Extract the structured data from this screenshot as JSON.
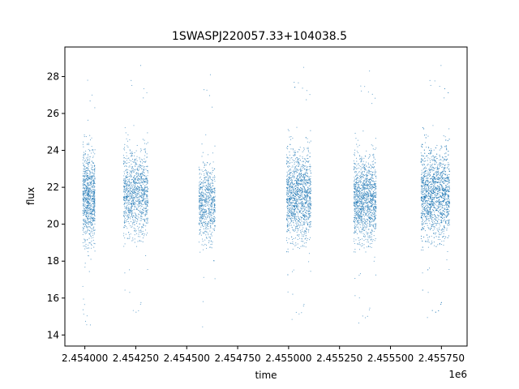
{
  "chart_data": {
    "type": "scatter",
    "title": "1SWASPJ220057.33+104038.5",
    "xlabel": "time",
    "ylabel": "flux",
    "x_offset_label": "1e6",
    "xlim": [
      2.453902,
      2.455876
    ],
    "ylim": [
      13.4,
      29.6
    ],
    "x_ticks": [
      2.454,
      2.45425,
      2.4545,
      2.45475,
      2.455,
      2.45525,
      2.4555,
      2.45575
    ],
    "x_tick_labels": [
      "2.454000",
      "2.454250",
      "2.454500",
      "2.454750",
      "2.455000",
      "2.455250",
      "2.455500",
      "2.455750"
    ],
    "y_ticks": [
      14,
      16,
      18,
      20,
      22,
      24,
      26,
      28
    ],
    "y_tick_labels": [
      "14",
      "16",
      "18",
      "20",
      "22",
      "24",
      "26",
      "28"
    ],
    "grid": false,
    "marker_color": "#1f77b4",
    "segments": [
      {
        "x_start": 2.45399,
        "x_end": 2.45405,
        "y_center": 21.5,
        "y_spread": 1.6,
        "points": 900
      },
      {
        "x_start": 2.45419,
        "x_end": 2.45431,
        "y_center": 21.7,
        "y_spread": 1.5,
        "points": 1100
      },
      {
        "x_start": 2.45456,
        "x_end": 2.45464,
        "y_center": 21.2,
        "y_spread": 1.4,
        "points": 700
      },
      {
        "x_start": 2.45499,
        "x_end": 2.45511,
        "y_center": 21.6,
        "y_spread": 1.6,
        "points": 1400
      },
      {
        "x_start": 2.45532,
        "x_end": 2.45543,
        "y_center": 21.4,
        "y_spread": 1.5,
        "points": 1300
      },
      {
        "x_start": 2.45565,
        "x_end": 2.45579,
        "y_center": 21.7,
        "y_spread": 1.6,
        "points": 1800
      }
    ]
  }
}
